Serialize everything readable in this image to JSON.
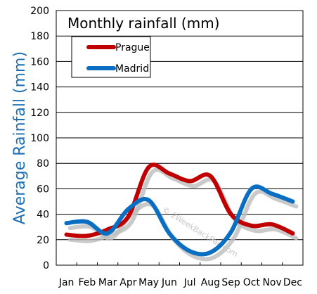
{
  "chart_data": {
    "type": "line",
    "title": "Monthly rainfall (mm)",
    "xlabel": "",
    "ylabel": "Average Rainfall (mm)",
    "ylabel_color": "#1f6fb3",
    "categories": [
      "Jan",
      "Feb",
      "Mar",
      "Apr",
      "May",
      "Jun",
      "Jul",
      "Aug",
      "Sep",
      "Oct",
      "Nov",
      "Dec"
    ],
    "yticks": [
      "0",
      "20",
      "40",
      "60",
      "80",
      "100",
      "120",
      "140",
      "160",
      "180",
      "200"
    ],
    "ylim": [
      0,
      200
    ],
    "grid": true,
    "legend_position": "top-left",
    "series": [
      {
        "name": "Prague",
        "color": "#c00000",
        "values": [
          24,
          23,
          28,
          38,
          77,
          72,
          66,
          70,
          40,
          31,
          32,
          25
        ]
      },
      {
        "name": "Madrid",
        "color": "#0a6fc2",
        "values": [
          33,
          34,
          25,
          44,
          51,
          25,
          11,
          10,
          26,
          60,
          56,
          50
        ]
      }
    ],
    "watermark": "© 2WeekBackPac.com"
  }
}
